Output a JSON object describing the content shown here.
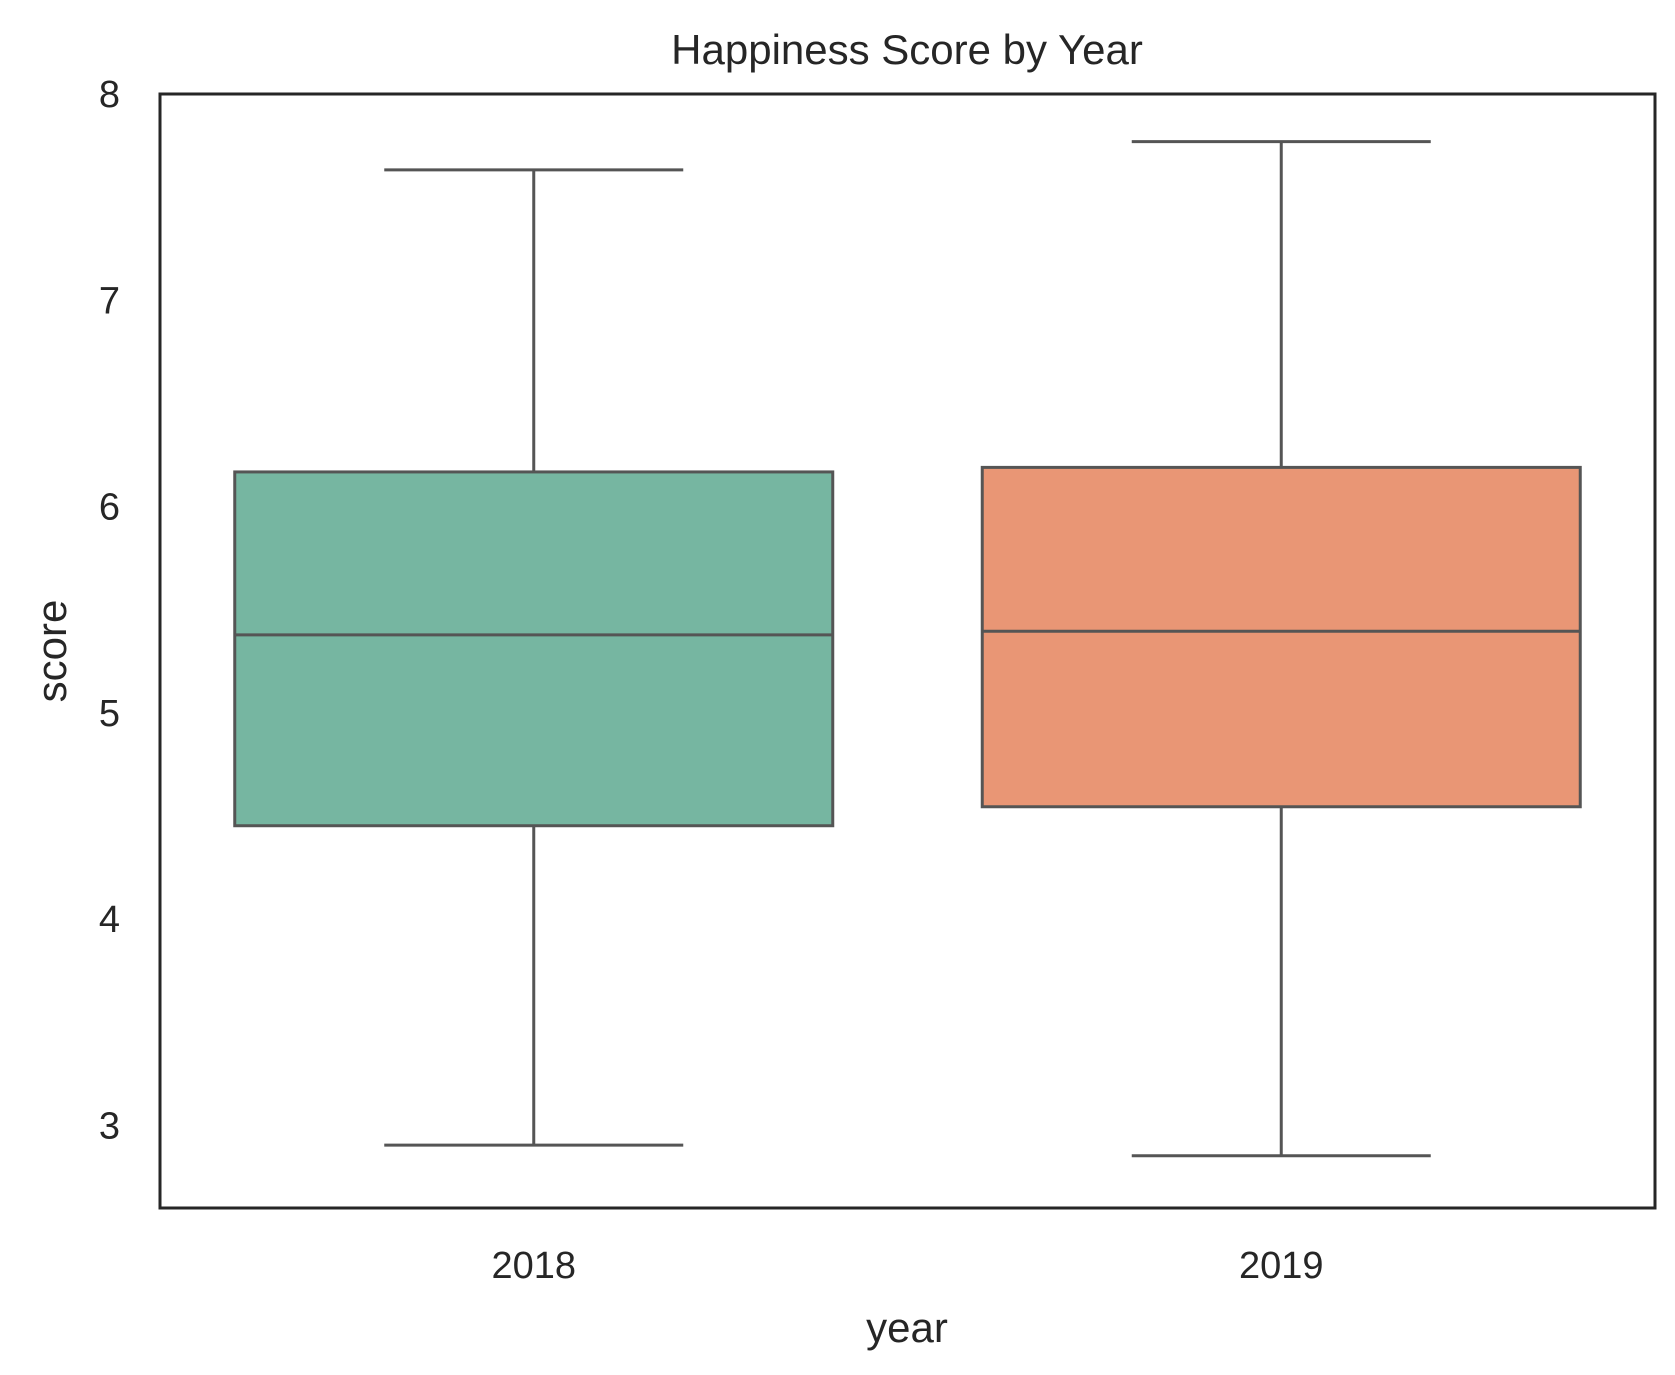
{
  "chart_data": {
    "type": "box",
    "title": "Happiness Score by Year",
    "xlabel": "year",
    "ylabel": "score",
    "ylim": [
      2.6,
      8.0
    ],
    "yticks": [
      3,
      4,
      5,
      6,
      7,
      8
    ],
    "grid": false,
    "categories": [
      "2018",
      "2019"
    ],
    "boxes": [
      {
        "category": "2018",
        "whisker_low": 2.905,
        "q1": 4.453,
        "median": 5.378,
        "q3": 6.168,
        "whisker_high": 7.632,
        "color": "#76b6a1"
      },
      {
        "category": "2019",
        "whisker_low": 2.853,
        "q1": 4.545,
        "median": 5.396,
        "q3": 6.19,
        "whisker_high": 7.769,
        "color": "#e99675"
      }
    ]
  }
}
